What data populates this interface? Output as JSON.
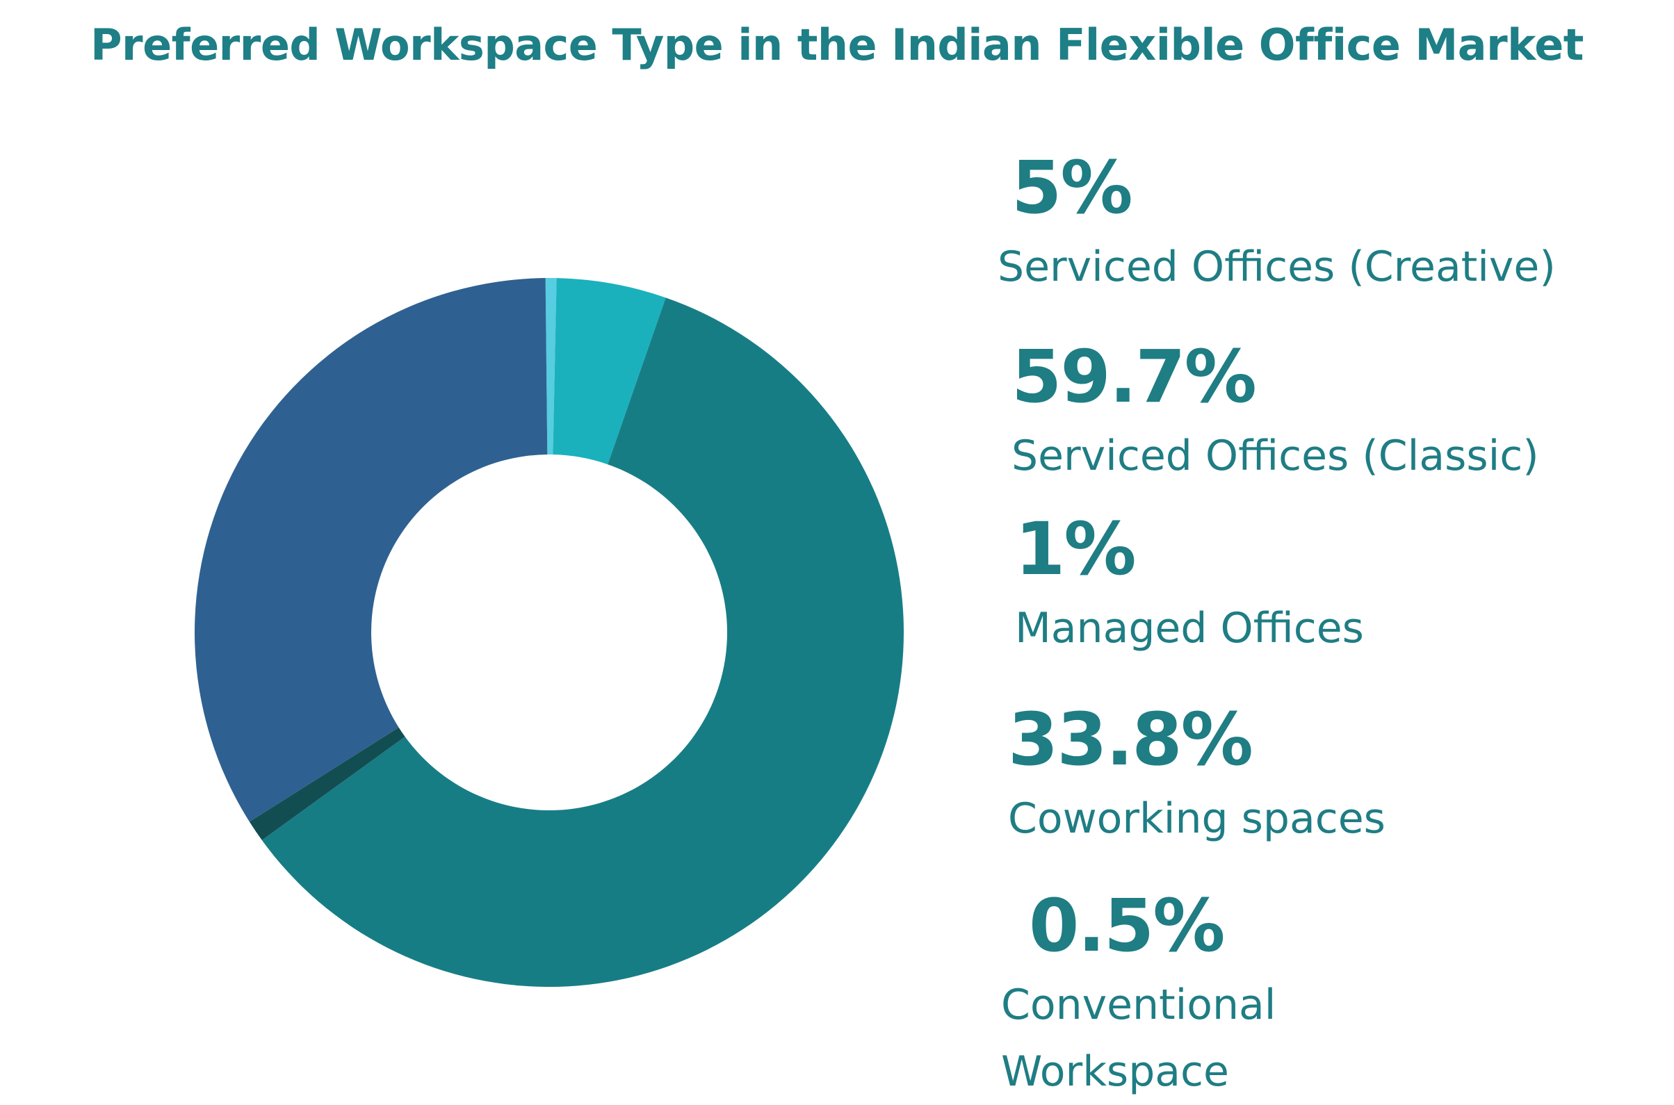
{
  "chart_data": {
    "type": "pie",
    "title": "Preferred Workspace Type in the Indian Flexible Office Market",
    "categories": [
      "Serviced Offices (Creative)",
      "Serviced Offices (Classic)",
      "Managed Offices",
      "Coworking spaces",
      "Conventional Workspace"
    ],
    "values": [
      5,
      59.7,
      1,
      33.8,
      0.5
    ],
    "value_labels": [
      "5%",
      "59.7%",
      "1%",
      "33.8%",
      "0.5%"
    ],
    "colors": [
      "#1ab1bd",
      "#177d85",
      "#124d52",
      "#2e6191",
      "#56cde0"
    ],
    "donut": true,
    "legend_position": "right"
  }
}
